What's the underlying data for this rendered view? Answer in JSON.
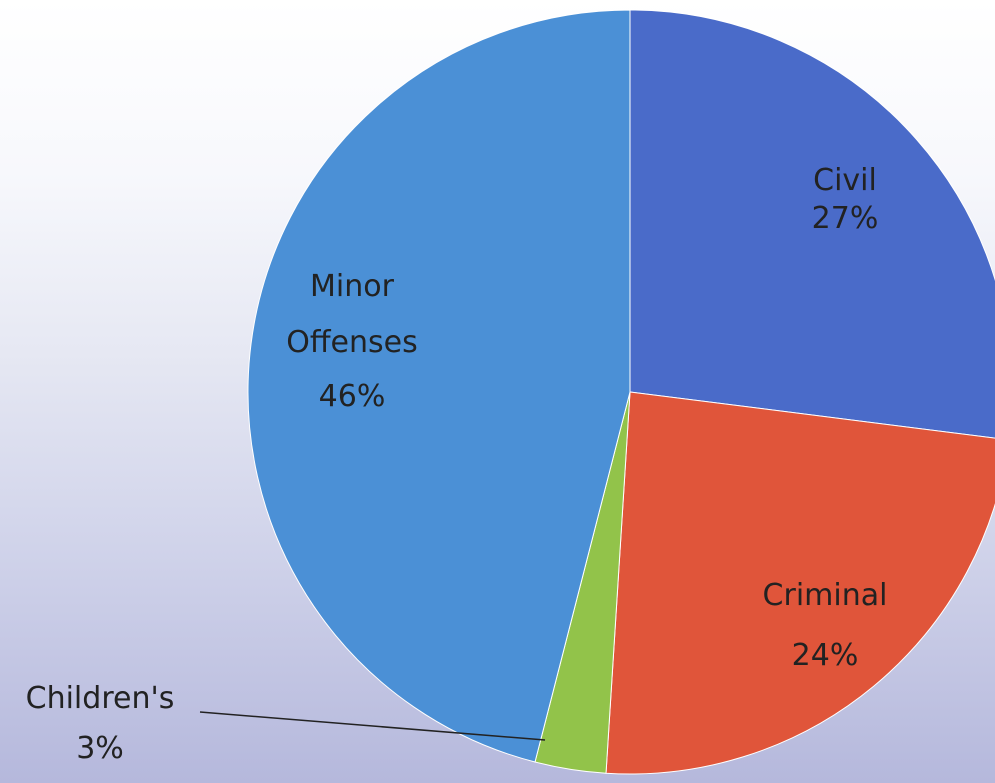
{
  "chart_data": {
    "type": "pie",
    "title": "",
    "slices": [
      {
        "label": "Civil",
        "percent_label": "27%",
        "value": 27,
        "color": "#4a6bc9"
      },
      {
        "label": "Criminal",
        "percent_label": "24%",
        "value": 24,
        "color": "#e0553a"
      },
      {
        "label": "Children's",
        "percent_label": "3%",
        "value": 3,
        "color": "#92c34a"
      },
      {
        "label": "Minor Offenses",
        "percent_label": "46%",
        "value": 46,
        "color": "#4b90d6"
      }
    ],
    "start_angle_deg": 0,
    "direction": "clockwise",
    "legend": "none",
    "data_labels": "inside, with leader line for small slice"
  }
}
